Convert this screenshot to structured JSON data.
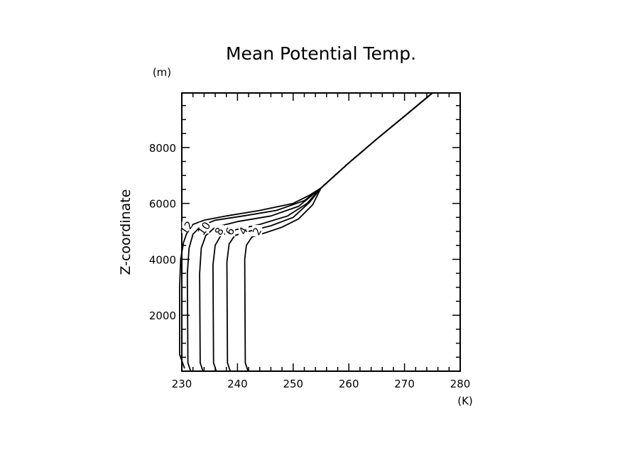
{
  "chart_data": {
    "type": "line",
    "title": "Mean Potential Temp.",
    "xlabel": "",
    "x_unit": "(K)",
    "ylabel": "Z-coordinate",
    "y_unit": "(m)",
    "xlim": [
      230,
      280
    ],
    "ylim": [
      0,
      9950
    ],
    "xticks": [
      230,
      240,
      250,
      260,
      270,
      280
    ],
    "xtick_labels": [
      "230",
      "240",
      "250",
      "260",
      "270",
      "280"
    ],
    "x_minor_step": 2,
    "yticks": [
      2000,
      4000,
      6000,
      8000
    ],
    "ytick_labels": [
      "2000",
      "4000",
      "6000",
      "8000"
    ],
    "y_minor_step": 500,
    "grid": false,
    "common_upper_line": [
      [
        255,
        6550
      ],
      [
        260,
        7450
      ],
      [
        265,
        8300
      ],
      [
        270,
        9120
      ],
      [
        275,
        9950
      ]
    ],
    "series": [
      {
        "name": "2",
        "label": "2",
        "label_at": [
          242.9,
          5000
        ],
        "label_angle": -60,
        "points": [
          [
            241.9,
            0
          ],
          [
            241.4,
            300
          ],
          [
            241.3,
            4000
          ],
          [
            241.6,
            4500
          ],
          [
            242.6,
            4800
          ],
          [
            245,
            4950
          ],
          [
            248,
            5150
          ],
          [
            251,
            5450
          ],
          [
            253.5,
            5950
          ],
          [
            255,
            6550
          ]
        ]
      },
      {
        "name": "4",
        "label": "4",
        "label_at": [
          240.2,
          5020
        ],
        "label_angle": -60,
        "points": [
          [
            238.7,
            0
          ],
          [
            238.2,
            300
          ],
          [
            238.1,
            3900
          ],
          [
            238.5,
            4550
          ],
          [
            239.5,
            4850
          ],
          [
            242,
            5000
          ],
          [
            246,
            5200
          ],
          [
            250,
            5500
          ],
          [
            253,
            6050
          ],
          [
            255,
            6550
          ]
        ]
      },
      {
        "name": "6",
        "label": "6",
        "label_at": [
          237.4,
          5000
        ],
        "label_angle": -60,
        "points": [
          [
            236.2,
            0
          ],
          [
            235.7,
            300
          ],
          [
            235.6,
            3800
          ],
          [
            236,
            4500
          ],
          [
            237,
            4850
          ],
          [
            239.5,
            5050
          ],
          [
            244,
            5250
          ],
          [
            249,
            5550
          ],
          [
            252.5,
            6000
          ],
          [
            255,
            6550
          ]
        ]
      },
      {
        "name": "8",
        "label": "8",
        "label_at": [
          235.2,
          5000
        ],
        "label_angle": -60,
        "points": [
          [
            233.8,
            0
          ],
          [
            233.3,
            300
          ],
          [
            233.2,
            3500
          ],
          [
            233.5,
            4400
          ],
          [
            234.3,
            4850
          ],
          [
            236,
            5150
          ],
          [
            240,
            5350
          ],
          [
            246,
            5550
          ],
          [
            251,
            5900
          ],
          [
            255,
            6550
          ]
        ]
      },
      {
        "name": "10",
        "label": "10",
        "label_at": [
          233.9,
          5100
        ],
        "label_angle": -55,
        "points": [
          [
            231.6,
            0
          ],
          [
            231.1,
            300
          ],
          [
            231,
            3500
          ],
          [
            231.3,
            4400
          ],
          [
            232,
            4900
          ],
          [
            233.5,
            5200
          ],
          [
            236,
            5400
          ],
          [
            241,
            5550
          ],
          [
            247,
            5750
          ],
          [
            252,
            6100
          ],
          [
            255,
            6550
          ]
        ]
      },
      {
        "name": "12",
        "label": "12",
        "label_at": [
          231.7,
          5120
        ],
        "label_angle": -55,
        "points": [
          [
            230.5,
            100
          ],
          [
            229.6,
            600
          ],
          [
            229.6,
            3000
          ],
          [
            229.8,
            4000
          ],
          [
            230.3,
            4600
          ],
          [
            231,
            5000
          ],
          [
            232,
            5250
          ],
          [
            234,
            5400
          ],
          [
            238,
            5550
          ],
          [
            244,
            5750
          ],
          [
            250,
            6000
          ],
          [
            253,
            6300
          ],
          [
            255,
            6550
          ]
        ]
      }
    ]
  }
}
